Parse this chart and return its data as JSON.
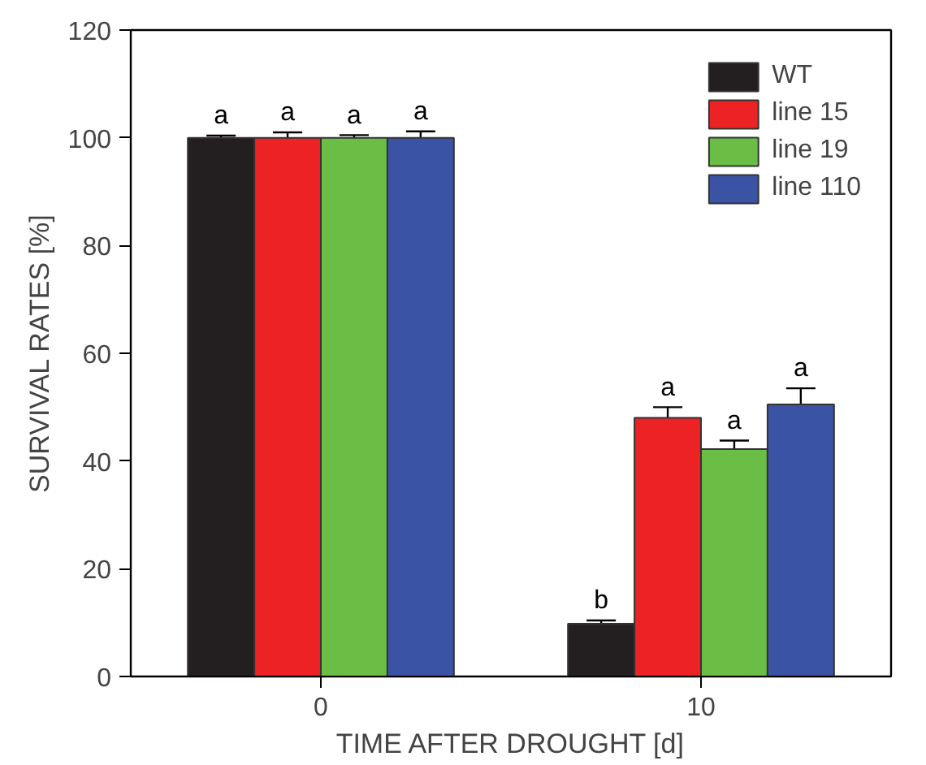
{
  "chart_data": {
    "type": "bar",
    "xlabel": "TIME AFTER DROUGHT [d]",
    "ylabel": "SURVIVAL RATES [%]",
    "categories": [
      "0",
      "10"
    ],
    "series": [
      {
        "name": "WT",
        "color": "#231f20",
        "values": [
          100,
          9.8
        ],
        "errors": [
          0.4,
          0.6
        ],
        "value_labels": [
          "a",
          "b"
        ]
      },
      {
        "name": "line 15",
        "color": "#ed2224",
        "values": [
          100,
          48
        ],
        "errors": [
          1,
          2
        ],
        "value_labels": [
          "a",
          "a"
        ]
      },
      {
        "name": "line 19",
        "color": "#6abd45",
        "values": [
          100,
          42.2
        ],
        "errors": [
          0.5,
          1.6
        ],
        "value_labels": [
          "a",
          "a"
        ]
      },
      {
        "name": "line 110",
        "color": "#3a53a4",
        "values": [
          100,
          50.5
        ],
        "errors": [
          1.2,
          3
        ],
        "value_labels": [
          "a",
          "a"
        ]
      }
    ],
    "ylim": [
      0,
      120
    ],
    "yticks": [
      0,
      20,
      40,
      60,
      80,
      100,
      120
    ],
    "legend": "top right",
    "grid": false
  }
}
